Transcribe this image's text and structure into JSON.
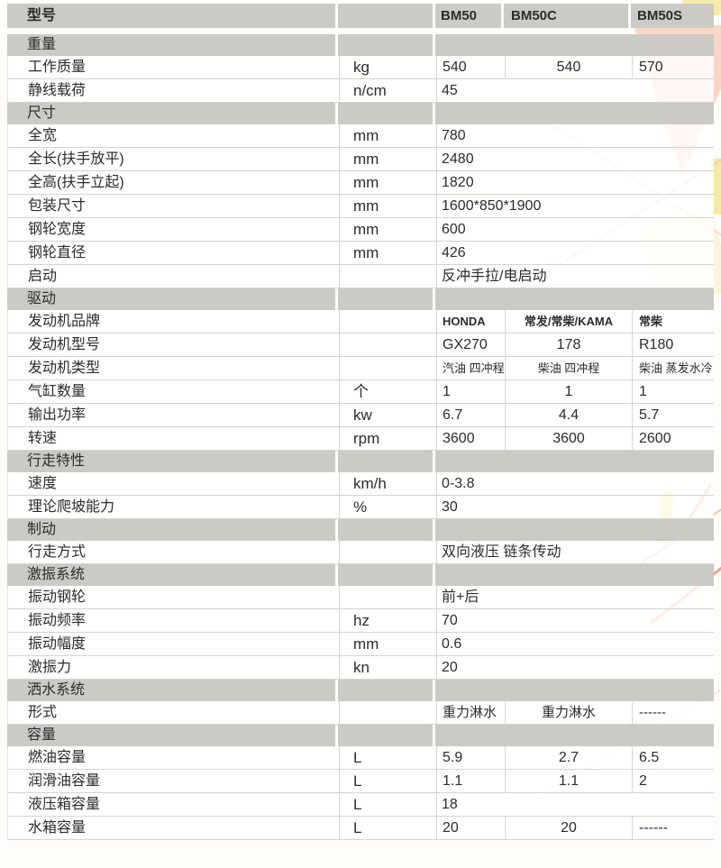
{
  "colors": {
    "header_gray": "#c9c9c4",
    "divider": "#d4d4d0",
    "text": "#2c2c2c",
    "watermark_peach": "#f4b092",
    "watermark_yellow": "#f3e49e",
    "watermark_orange": "#ee8c5f"
  },
  "table": {
    "header": {
      "label": "型号",
      "models": [
        "BM50",
        "BM50C",
        "BM50S"
      ]
    },
    "sections": [
      {
        "title": "重量",
        "rows": [
          {
            "name": "工作质量",
            "unit": "kg",
            "values": [
              "540",
              "540",
              "570"
            ]
          },
          {
            "name": "静线载荷",
            "unit": "n/cm",
            "span": "45"
          }
        ]
      },
      {
        "title": "尺寸",
        "rows": [
          {
            "name": "全宽",
            "unit": "mm",
            "span": "780"
          },
          {
            "name": "全长(扶手放平)",
            "unit": "mm",
            "span": "2480"
          },
          {
            "name": "全高(扶手立起)",
            "unit": "mm",
            "span": "1820"
          },
          {
            "name": "包装尺寸",
            "unit": "mm",
            "span": "1600*850*1900"
          },
          {
            "name": "钢轮宽度",
            "unit": "mm",
            "span": "600"
          },
          {
            "name": "钢轮直径",
            "unit": "mm",
            "span": "426"
          },
          {
            "name": "启动",
            "unit": "",
            "span": "反冲手拉/电启动"
          }
        ]
      },
      {
        "title": "驱动",
        "rows": [
          {
            "name": "发动机品牌",
            "unit": "",
            "values": [
              "HONDA",
              "常发/常柴/KAMA",
              "常柴"
            ],
            "style": "smallb"
          },
          {
            "name": "发动机型号",
            "unit": "",
            "values": [
              "GX270",
              "178",
              "R180"
            ]
          },
          {
            "name": "发动机类型",
            "unit": "",
            "values": [
              "汽油 四冲程",
              "柴油 四冲程",
              "柴油 蒸发水冷"
            ],
            "style": "small"
          },
          {
            "name": "气缸数量",
            "unit": "个",
            "values": [
              "1",
              "1",
              "1"
            ]
          },
          {
            "name": "输出功率",
            "unit": "kw",
            "values": [
              "6.7",
              "4.4",
              "5.7"
            ]
          },
          {
            "name": "转速",
            "unit": "rpm",
            "values": [
              "3600",
              "3600",
              "2600"
            ]
          }
        ]
      },
      {
        "title": "行走特性",
        "rows": [
          {
            "name": "速度",
            "unit": "km/h",
            "span": "0-3.8"
          },
          {
            "name": "理论爬坡能力",
            "unit": "%",
            "span": "30"
          }
        ]
      },
      {
        "title": "制动",
        "rows": [
          {
            "name": "行走方式",
            "unit": "",
            "span": "双向液压 链条传动"
          }
        ]
      },
      {
        "title": "激振系统",
        "rows": [
          {
            "name": "振动钢轮",
            "unit": "",
            "span": "前+后"
          },
          {
            "name": "振动频率",
            "unit": "hz",
            "span": "70"
          },
          {
            "name": "振动幅度",
            "unit": "mm",
            "span": "0.6"
          },
          {
            "name": "激振力",
            "unit": "kn",
            "span": "20"
          }
        ]
      },
      {
        "title": "洒水系统",
        "rows": [
          {
            "name": "形式",
            "unit": "",
            "values": [
              "重力淋水",
              "重力淋水",
              "------"
            ],
            "style": "size15"
          }
        ]
      },
      {
        "title": "容量",
        "rows": [
          {
            "name": "燃油容量",
            "unit": "L",
            "values": [
              "5.9",
              "2.7",
              "6.5"
            ]
          },
          {
            "name": "润滑油容量",
            "unit": "L",
            "values": [
              "1.1",
              "1.1",
              "2"
            ]
          },
          {
            "name": "液压箱容量",
            "unit": "L",
            "span": "18"
          },
          {
            "name": "水箱容量",
            "unit": "L",
            "values": [
              "20",
              "20",
              "------"
            ]
          }
        ]
      }
    ]
  }
}
